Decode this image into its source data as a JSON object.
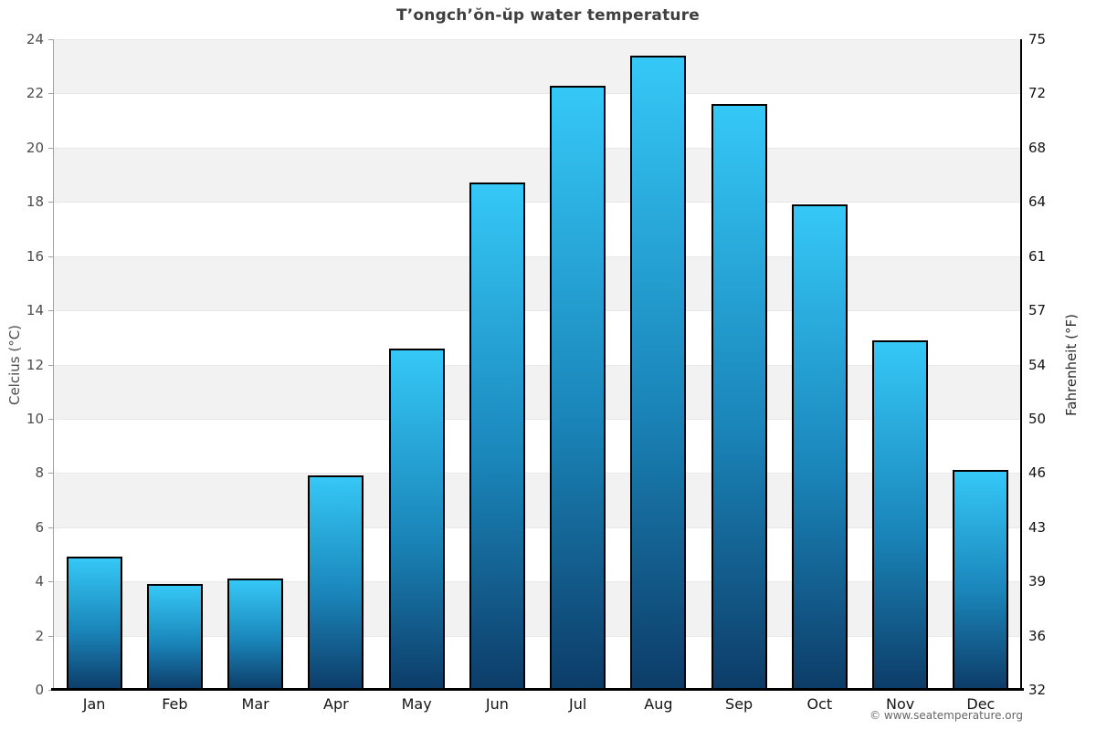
{
  "title": "T’ongch’ŏn-ŭp water temperature",
  "footer": "© www.seatemperature.org",
  "chart_data": {
    "type": "bar",
    "title": "T’ongch’ŏn-ŭp water temperature",
    "categories": [
      "Jan",
      "Feb",
      "Mar",
      "Apr",
      "May",
      "Jun",
      "Jul",
      "Aug",
      "Sep",
      "Oct",
      "Nov",
      "Dec"
    ],
    "values": [
      4.9,
      3.9,
      4.1,
      7.9,
      12.6,
      18.7,
      22.3,
      23.4,
      21.6,
      17.9,
      12.9,
      8.1
    ],
    "series_name": "Water temperature (°C)",
    "ylabel_left": "Celcius (°C)",
    "ylabel_right": "Fahrenheit (°F)",
    "ylim": [
      0,
      24
    ],
    "yticks_celsius": [
      0,
      2,
      4,
      6,
      8,
      10,
      12,
      14,
      16,
      18,
      20,
      22,
      24
    ],
    "yticks_fahrenheit": [
      32,
      36,
      39,
      43,
      46,
      50,
      54,
      57,
      61,
      64,
      68,
      72,
      75
    ],
    "grid": "alternating horizontal bands, 2°C each, gray/white",
    "legend": "none",
    "colors": {
      "bar_gradient_top": "#35c8f7",
      "bar_gradient_bottom": "#0d3c68",
      "bar_outline": "#000000",
      "band_gray": "#f2f2f2",
      "band_white": "#ffffff",
      "baseline": "#000000",
      "right_axis": "#000000",
      "left_axis": "#a3a3a3",
      "title_color": "#3f3f3f"
    }
  }
}
